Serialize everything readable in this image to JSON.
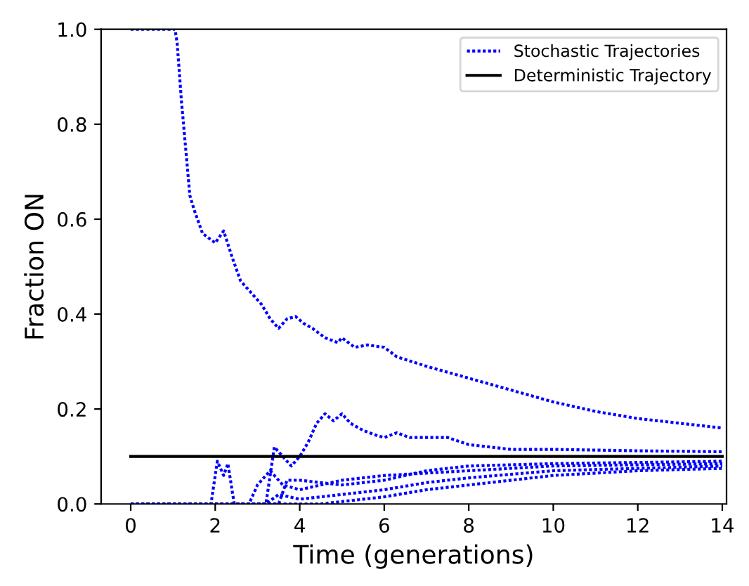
{
  "chart_data": {
    "type": "line",
    "xlabel": "Time (generations)",
    "ylabel": "Fraction ON",
    "xlim": [
      -0.7,
      14.1
    ],
    "ylim": [
      0,
      1
    ],
    "xticks": [
      0,
      2,
      4,
      6,
      8,
      10,
      12,
      14
    ],
    "yticks": [
      {
        "value": 0,
        "label": "0.0"
      },
      {
        "value": 0.2,
        "label": "0.2"
      },
      {
        "value": 0.4,
        "label": "0.4"
      },
      {
        "value": 0.6,
        "label": "0.6"
      },
      {
        "value": 0.8,
        "label": "0.8"
      },
      {
        "value": 1,
        "label": "1.0"
      }
    ],
    "grid": false,
    "legend": "top right",
    "series": [
      {
        "name": "Stochastic Trajectories",
        "color": "#0000ff",
        "line_style": "dotted",
        "x": [
          0,
          1.05,
          1.1,
          1.2,
          1.3,
          1.4,
          1.5,
          1.7,
          2.0,
          2.2,
          2.4,
          2.6,
          2.9,
          3.1,
          3.3,
          3.5,
          3.7,
          3.9,
          4.1,
          4.3,
          4.6,
          4.9,
          5.0,
          5.3,
          5.6,
          6.0,
          6.3,
          7,
          8,
          9,
          10,
          11,
          12,
          13,
          14
        ],
        "values": [
          1.0,
          1.0,
          0.97,
          0.85,
          0.75,
          0.65,
          0.62,
          0.57,
          0.55,
          0.575,
          0.52,
          0.47,
          0.44,
          0.42,
          0.39,
          0.37,
          0.39,
          0.395,
          0.38,
          0.37,
          0.35,
          0.34,
          0.35,
          0.33,
          0.335,
          0.33,
          0.31,
          0.29,
          0.265,
          0.24,
          0.215,
          0.195,
          0.18,
          0.17,
          0.16
        ]
      },
      {
        "color": "#0000ff",
        "line_style": "dotted",
        "x": [
          0,
          3.2,
          3.4,
          3.6,
          3.8,
          4.0,
          4.2,
          4.4,
          4.6,
          4.8,
          5.0,
          5.2,
          5.5,
          5.8,
          6.0,
          6.3,
          6.6,
          7.0,
          7.5,
          8,
          9,
          10,
          12,
          14
        ],
        "values": [
          0,
          0,
          0.12,
          0.1,
          0.08,
          0.1,
          0.13,
          0.17,
          0.19,
          0.175,
          0.19,
          0.17,
          0.155,
          0.145,
          0.14,
          0.15,
          0.14,
          0.14,
          0.14,
          0.125,
          0.115,
          0.115,
          0.112,
          0.11
        ]
      },
      {
        "color": "#0000ff",
        "line_style": "dotted",
        "x": [
          0,
          1.9,
          2.05,
          2.2,
          2.3,
          2.45,
          3.5,
          3.7,
          4,
          5,
          6,
          7,
          8,
          10,
          14
        ],
        "values": [
          0,
          0,
          0.09,
          0.06,
          0.085,
          0,
          0,
          0.05,
          0.05,
          0.04,
          0.05,
          0.07,
          0.08,
          0.085,
          0.09
        ]
      },
      {
        "color": "#0000ff",
        "line_style": "dotted",
        "x": [
          0,
          2.8,
          3.0,
          3.3,
          3.6,
          4,
          5,
          6,
          7,
          8,
          10,
          14
        ],
        "values": [
          0,
          0,
          0.04,
          0.07,
          0.04,
          0.03,
          0.05,
          0.06,
          0.065,
          0.07,
          0.08,
          0.085
        ]
      },
      {
        "color": "#0000ff",
        "line_style": "dotted",
        "x": [
          0,
          3.2,
          3.5,
          4.0,
          5,
          6,
          7,
          8,
          10,
          12,
          14
        ],
        "values": [
          0,
          0,
          0.02,
          0.01,
          0.02,
          0.03,
          0.045,
          0.055,
          0.07,
          0.075,
          0.08
        ]
      },
      {
        "color": "#0000ff",
        "line_style": "dotted",
        "x": [
          0,
          4.5,
          5,
          6,
          7,
          8,
          10,
          12,
          14
        ],
        "values": [
          0,
          0,
          0.005,
          0.015,
          0.03,
          0.04,
          0.06,
          0.07,
          0.075
        ]
      },
      {
        "name": "Deterministic Trajectory",
        "color": "#000000",
        "line_style": "solid",
        "x": [
          0,
          14
        ],
        "values": [
          0.1,
          0.1
        ]
      }
    ]
  }
}
